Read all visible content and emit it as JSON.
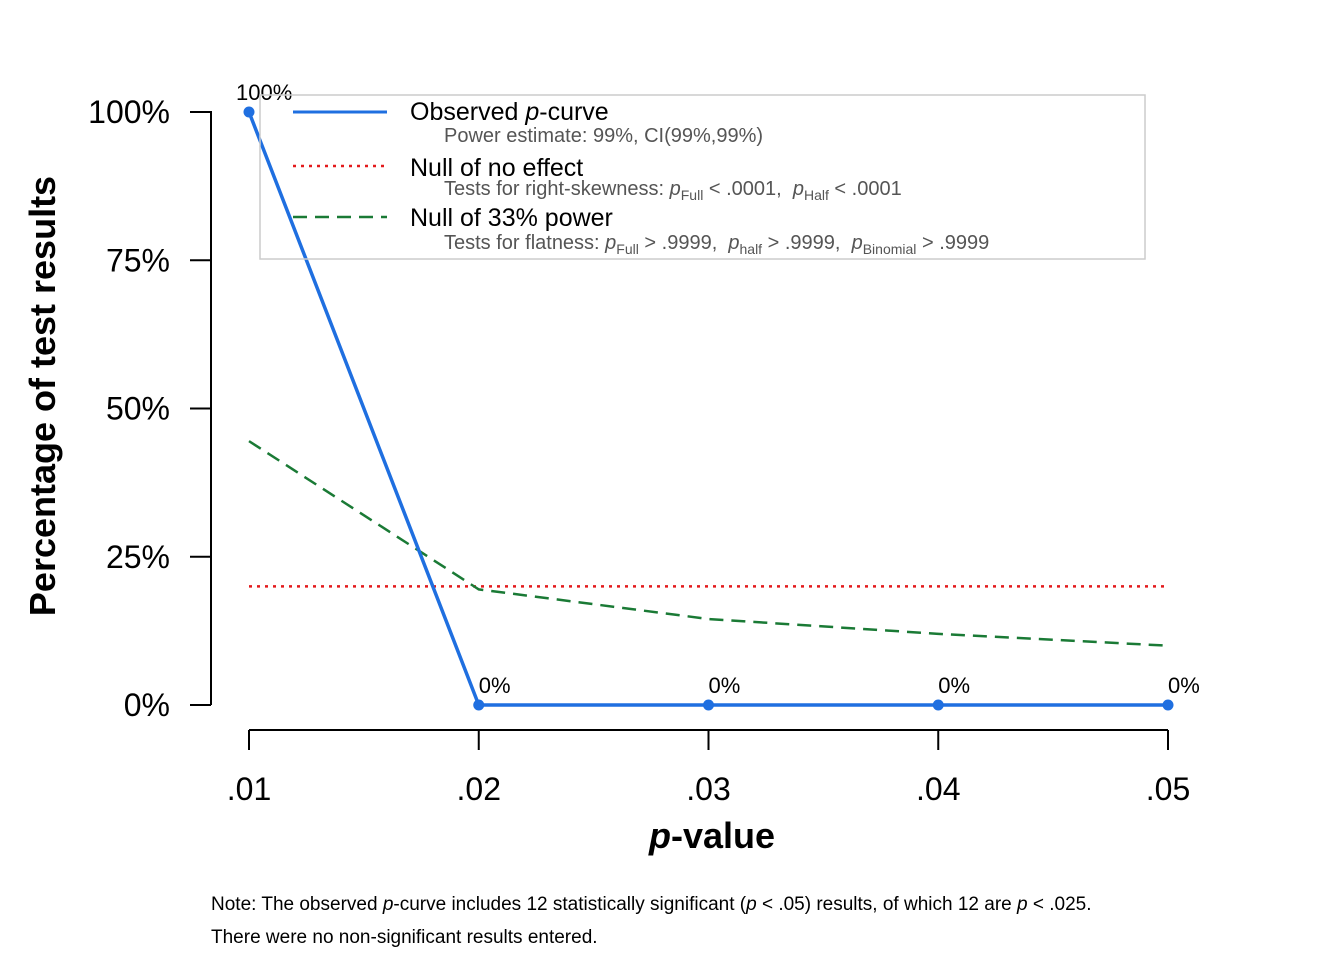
{
  "chart_data": {
    "type": "line",
    "x": [
      0.01,
      0.02,
      0.03,
      0.04,
      0.05
    ],
    "x_tick_labels": [
      ".01",
      ".02",
      ".03",
      ".04",
      ".05"
    ],
    "y_ticks": [
      0,
      25,
      50,
      75,
      100
    ],
    "y_tick_labels": [
      "0%",
      "25%",
      "50%",
      "75%",
      "100%"
    ],
    "ylim": [
      0,
      100
    ],
    "xlabel_italic": "p",
    "xlabel_rest": "-value",
    "ylabel": "Percentage of test results",
    "series": [
      {
        "name": "Observed p-curve",
        "color": "#1f6fe0",
        "style": "solid",
        "values": [
          100,
          0,
          0,
          0,
          0
        ],
        "point_labels": [
          "100%",
          "0%",
          "0%",
          "0%",
          "0%"
        ]
      },
      {
        "name": "Null of no effect",
        "color": "#e31a1c",
        "style": "dotted",
        "values": [
          20,
          20,
          20,
          20,
          20
        ]
      },
      {
        "name": "Null of 33% power",
        "color": "#1a7a35",
        "style": "dashed",
        "values": [
          44.5,
          19.5,
          14.5,
          12,
          10
        ]
      }
    ],
    "legend": {
      "position": "top",
      "observed": {
        "title_pre": "Observed ",
        "title_italic": "p",
        "title_post": "-curve",
        "sub": "Power estimate: 99%, CI(99%,99%)"
      },
      "null_effect": {
        "title": "Null of no effect",
        "sub_pre": "Tests for right-skewness: ",
        "p1": "p",
        "p1_sub": "Full",
        "p1_val": " < .0001,  ",
        "p2": "p",
        "p2_sub": "Half",
        "p2_val": " < .0001"
      },
      "null_power": {
        "title": "Null of 33% power",
        "sub_pre": "Tests for flatness: ",
        "p1": "p",
        "p1_sub": "Full",
        "p1_val": " > .9999,  ",
        "p2": "p",
        "p2_sub": "half",
        "p2_val": " > .9999,  ",
        "p3": "p",
        "p3_sub": "Binomial",
        "p3_val": " > .9999"
      }
    },
    "note": {
      "line1_a": "Note: The observed ",
      "line1_b": "p",
      "line1_c": "-curve includes 12 statistically significant (",
      "line1_d": "p",
      "line1_e": " < .05) results, of which 12 are ",
      "line1_f": "p",
      "line1_g": " < .025.",
      "line2": "There were no non-significant results entered."
    }
  }
}
